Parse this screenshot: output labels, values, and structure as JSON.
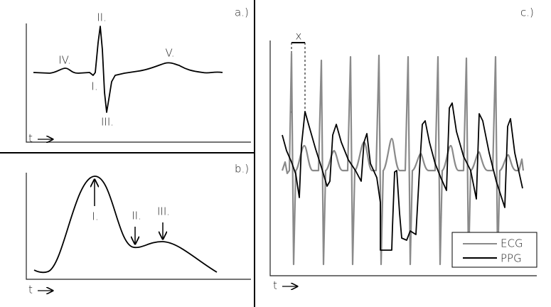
{
  "panels": [
    {
      "label": "a.)",
      "annotations": [
        "II.",
        "IV.",
        "V.",
        "I.",
        "III."
      ],
      "axis": "t"
    },
    {
      "label": "b.)",
      "annotations": [
        "I.",
        "II.",
        "III."
      ],
      "axis": "t"
    },
    {
      "label": "c.)",
      "interval": "x",
      "legend": [
        "ECG",
        "PPG"
      ],
      "axis": "t"
    }
  ]
}
